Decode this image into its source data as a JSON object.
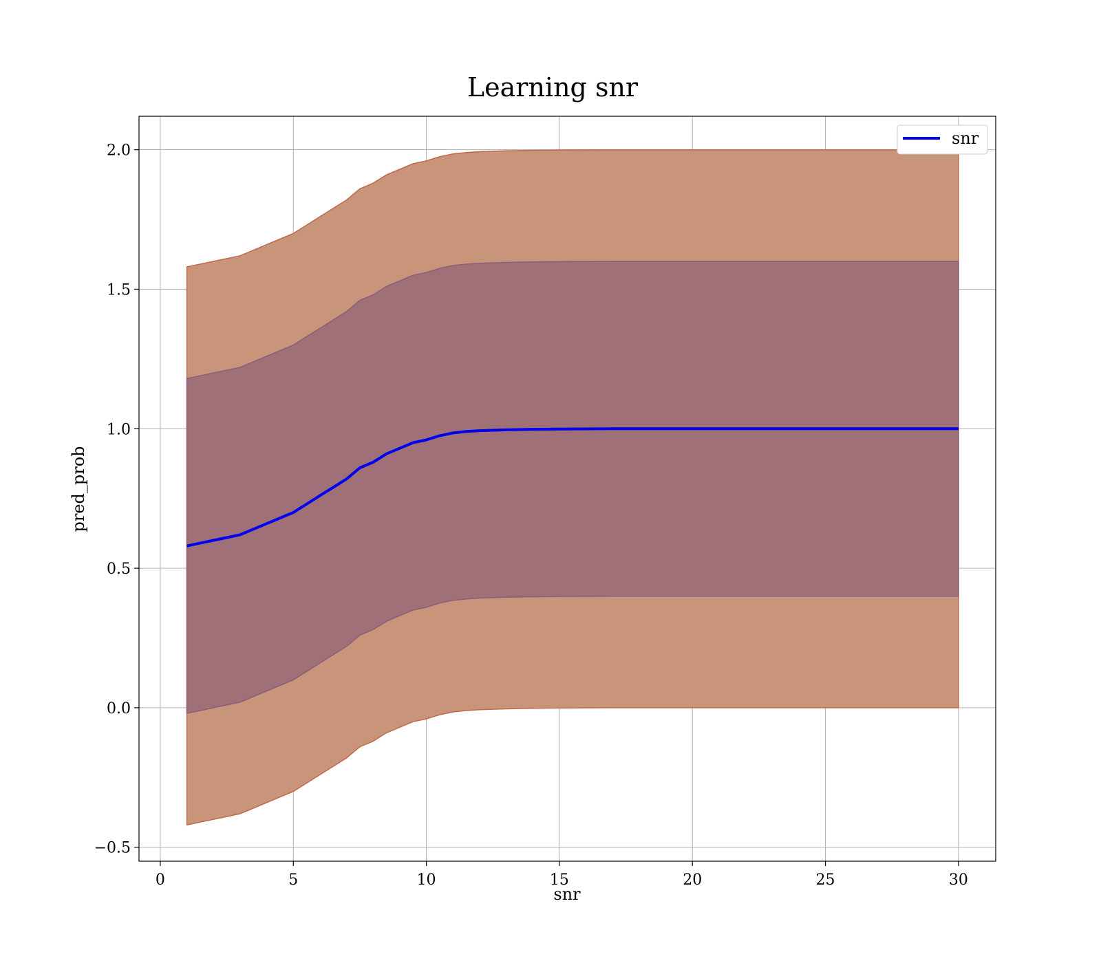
{
  "chart_data": {
    "type": "line",
    "title": "Learning snr",
    "xlabel": "snr",
    "ylabel": "pred_prob",
    "xlim": [
      -0.8,
      31.4
    ],
    "ylim": [
      -0.55,
      2.12
    ],
    "xticks": [
      0,
      5,
      10,
      15,
      20,
      25,
      30
    ],
    "yticks": [
      -0.5,
      0.0,
      0.5,
      1.0,
      1.5,
      2.0
    ],
    "xtick_labels": [
      "0",
      "5",
      "10",
      "15",
      "20",
      "25",
      "30"
    ],
    "ytick_labels": [
      "−0.5",
      "0.0",
      "0.5",
      "1.0",
      "1.5",
      "2.0"
    ],
    "grid": true,
    "legend": {
      "position": "upper-right",
      "entries": [
        "snr"
      ]
    },
    "colors": {
      "line": "#0000ee",
      "outer_band": "#c8947a",
      "outer_band_edge": "#c0684a",
      "inner_band": "#a07078",
      "inner_band_edge": "#8a5d7a",
      "grid": "#b0b0b0"
    },
    "series": [
      {
        "name": "snr",
        "x": [
          1,
          1.5,
          2,
          2.5,
          3,
          3.5,
          4,
          4.5,
          5,
          5.5,
          6,
          6.5,
          7,
          7.5,
          8,
          8.5,
          9,
          9.5,
          10,
          10.5,
          11,
          11.5,
          12,
          13,
          14,
          15,
          17,
          20,
          25,
          30
        ],
        "y": [
          0.58,
          0.59,
          0.6,
          0.61,
          0.62,
          0.64,
          0.66,
          0.68,
          0.7,
          0.73,
          0.76,
          0.79,
          0.82,
          0.86,
          0.88,
          0.91,
          0.93,
          0.95,
          0.96,
          0.975,
          0.985,
          0.99,
          0.993,
          0.996,
          0.998,
          0.999,
          1.0,
          1.0,
          1.0,
          1.0
        ],
        "inner_band": 0.6,
        "outer_band": 1.0
      }
    ]
  }
}
